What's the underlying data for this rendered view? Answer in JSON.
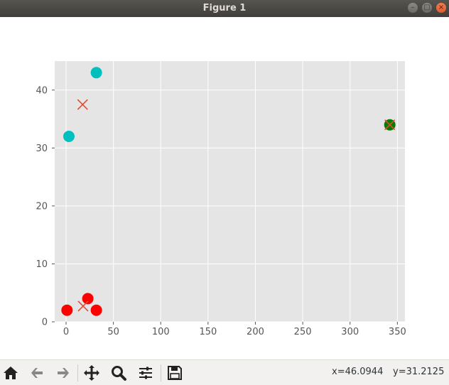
{
  "window": {
    "title": "Figure 1"
  },
  "chart_data": {
    "type": "scatter",
    "xlim": [
      -12,
      358
    ],
    "ylim": [
      0,
      45
    ],
    "xticks": [
      0,
      50,
      100,
      150,
      200,
      250,
      300,
      350
    ],
    "yticks": [
      0,
      10,
      20,
      30,
      40
    ],
    "grid": true,
    "series": [
      {
        "marker": "circle",
        "color": "#ff0000",
        "points": [
          [
            1,
            2
          ],
          [
            23,
            4
          ],
          [
            32,
            2
          ]
        ]
      },
      {
        "marker": "circle",
        "color": "#00bfbf",
        "points": [
          [
            32,
            43
          ],
          [
            3,
            32
          ]
        ]
      },
      {
        "marker": "circle",
        "color": "#008000",
        "points": [
          [
            342,
            34
          ]
        ]
      },
      {
        "marker": "x",
        "color": "#e24a33",
        "points": [
          [
            18,
            2.7
          ],
          [
            17.5,
            37.5
          ],
          [
            342,
            34
          ]
        ]
      }
    ]
  },
  "toolbar": {
    "icons": [
      "home-icon",
      "back-arrow-icon",
      "forward-arrow-icon",
      "pan-icon",
      "zoom-icon",
      "configure-icon",
      "save-icon"
    ],
    "coord_x": "x=46.0944",
    "coord_y": "y=31.2125"
  }
}
